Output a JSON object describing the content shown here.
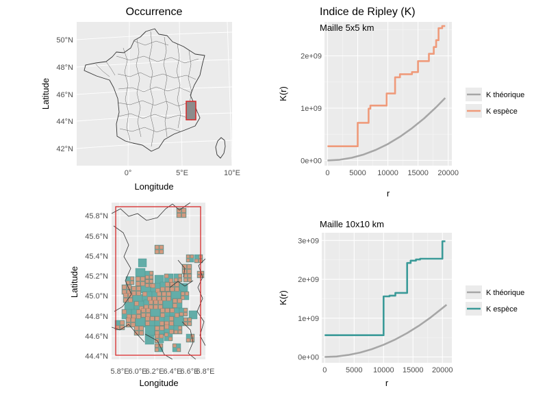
{
  "colors": {
    "panel_bg": "#ebebeb",
    "grid": "#ffffff",
    "theoretical": "#a6a6a6",
    "species_5": "#ef9a7a",
    "species_10": "#3a9a98",
    "outline": "#333333",
    "box": "#d62728",
    "cell_fine": "#d39a80",
    "cell_coarse": "#63ada8"
  },
  "occurrence": {
    "title": "Occurrence",
    "xlabel": "Longitude",
    "ylabel": "Latitude",
    "xticks": [
      "0°",
      "5°E",
      "10°E"
    ],
    "yticks": [
      "42°N",
      "44°N",
      "46°N",
      "48°N",
      "50°N"
    ]
  },
  "zoom": {
    "xlabel": "Longitude",
    "ylabel": "Latitude",
    "xticks": [
      "5.8°E",
      "6.0°E",
      "6.2°E",
      "6.4°E",
      "6.6°E",
      "6.8°E"
    ],
    "yticks": [
      "44.4°N",
      "44.6°N",
      "44.8°N",
      "45.0°N",
      "45.2°N",
      "45.4°N",
      "45.6°N",
      "45.8°N"
    ]
  },
  "ripley": {
    "title": "Indice de Ripley (K)"
  },
  "chart_data": [
    {
      "type": "line",
      "subtitle": "Maille 5x5 km",
      "xlabel": "r",
      "ylabel": "K(r)",
      "xlim": [
        -500,
        20600
      ],
      "ylim": [
        -100000000,
        2650000000
      ],
      "xticks": [
        0,
        5000,
        10000,
        15000,
        20000
      ],
      "xtick_labels": [
        "0",
        "5000",
        "10000",
        "15000",
        "20000"
      ],
      "yticks": [
        0,
        1000000000,
        2000000000
      ],
      "ytick_labels": [
        "0e+00",
        "1e+09",
        "2e+09"
      ],
      "legend_position": "right",
      "series": [
        {
          "name": "K théorique",
          "color": "#a6a6a6",
          "x": [
            0,
            2000,
            4000,
            6000,
            8000,
            10000,
            12000,
            14000,
            16000,
            18000,
            19500
          ],
          "y": [
            0,
            12600000,
            50300000,
            113000000,
            201000000,
            314000000,
            452000000,
            616000000,
            804000000,
            1018000000,
            1195000000
          ]
        },
        {
          "name": "K espèce",
          "color": "#ef9a7a",
          "step": true,
          "x": [
            0,
            5000,
            5000,
            6800,
            6800,
            7100,
            7100,
            9800,
            9800,
            11200,
            11200,
            12000,
            12000,
            14000,
            14000,
            15000,
            15000,
            16800,
            16800,
            17600,
            17600,
            18000,
            18000,
            18400,
            18400,
            19000,
            19000,
            19500
          ],
          "y": [
            270000000,
            270000000,
            720000000,
            720000000,
            990000000,
            990000000,
            1050000000,
            1050000000,
            1280000000,
            1280000000,
            1590000000,
            1590000000,
            1650000000,
            1650000000,
            1690000000,
            1690000000,
            1900000000,
            1900000000,
            2040000000,
            2040000000,
            2170000000,
            2170000000,
            2300000000,
            2300000000,
            2530000000,
            2530000000,
            2570000000,
            2570000000
          ]
        }
      ]
    },
    {
      "type": "line",
      "subtitle": "Maille 10x10 km",
      "xlabel": "r",
      "ylabel": "K(r)",
      "xlim": [
        -500,
        21600
      ],
      "ylim": [
        -150000000,
        3200000000
      ],
      "xticks": [
        0,
        5000,
        10000,
        15000,
        20000
      ],
      "xtick_labels": [
        "0",
        "5000",
        "10000",
        "15000",
        "20000"
      ],
      "yticks": [
        0,
        1000000000,
        2000000000,
        3000000000
      ],
      "ytick_labels": [
        "0e+00",
        "1e+09",
        "2e+09",
        "3e+09"
      ],
      "legend_position": "right",
      "series": [
        {
          "name": "K théorique",
          "color": "#a6a6a6",
          "x": [
            0,
            2000,
            4000,
            6000,
            8000,
            10000,
            12000,
            14000,
            16000,
            18000,
            20000,
            20700
          ],
          "y": [
            0,
            12600000,
            50300000,
            113000000,
            201000000,
            314000000,
            452000000,
            616000000,
            804000000,
            1018000000,
            1257000000,
            1346000000
          ]
        },
        {
          "name": "K espèce",
          "color": "#3a9a98",
          "step": true,
          "x": [
            0,
            10000,
            10000,
            11000,
            11000,
            12000,
            12000,
            14000,
            14000,
            14600,
            14600,
            15500,
            15500,
            16200,
            16200,
            20000,
            20000,
            20500
          ],
          "y": [
            560000000,
            560000000,
            1560000000,
            1560000000,
            1580000000,
            1580000000,
            1650000000,
            1650000000,
            2420000000,
            2420000000,
            2480000000,
            2480000000,
            2510000000,
            2510000000,
            2530000000,
            2530000000,
            2980000000,
            2980000000
          ]
        }
      ]
    }
  ]
}
